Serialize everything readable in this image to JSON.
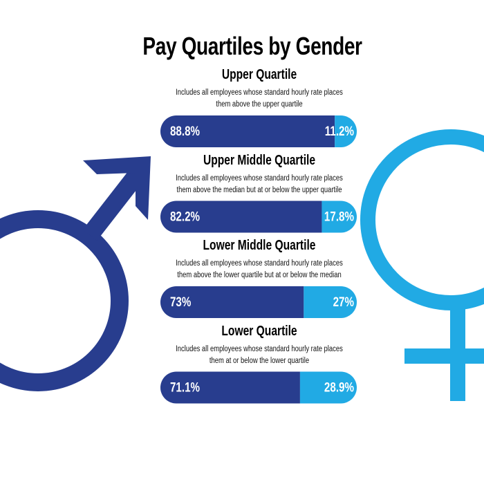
{
  "chart_data": {
    "type": "stacked-bar",
    "title": "Pay Quartiles by Gender",
    "categories": [
      "Upper Quartile",
      "Upper Middle Quartile",
      "Lower Middle Quartile",
      "Lower Quartile"
    ],
    "descriptions": [
      "Includes all employees whose standard hourly rate places them above the upper quartile",
      "Includes all employees whose standard hourly rate places them above the median but at or below the upper quartile",
      "Includes all employees whose standard hourly rate places them above the lower quartile but at or below the median",
      "Includes all employees whose standard hourly rate places them at or below the lower quartile"
    ],
    "series": [
      {
        "color": "#283d8e",
        "values": [
          88.8,
          82.2,
          73,
          71.1
        ],
        "value_labels": [
          "88.8%",
          "82.2%",
          "73%",
          "71.1%"
        ]
      },
      {
        "color": "#21aae4",
        "values": [
          11.2,
          17.8,
          27,
          28.9
        ],
        "value_labels": [
          "11.2%",
          "17.8%",
          "27%",
          "28.9%"
        ]
      }
    ]
  }
}
